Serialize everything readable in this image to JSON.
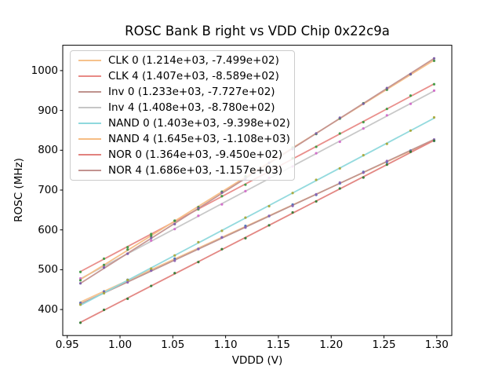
{
  "chart_data": {
    "type": "scatter",
    "title": "ROSC Bank B right vs VDD Chip 0x22c9a",
    "xlabel": "VDDD (V)",
    "ylabel": "ROSC (MHz)",
    "x_ticks": [
      0.95,
      1.0,
      1.05,
      1.1,
      1.15,
      1.2,
      1.25,
      1.3
    ],
    "x_tick_labels": [
      "0.95",
      "1.00",
      "1.05",
      "1.10",
      "1.15",
      "1.20",
      "1.25",
      "1.30"
    ],
    "y_ticks": [
      400,
      500,
      600,
      700,
      800,
      900,
      1000
    ],
    "y_tick_labels": [
      "400",
      "500",
      "600",
      "700",
      "800",
      "900",
      "1000"
    ],
    "xlim": [
      0.94575,
      1.31425
    ],
    "ylim": [
      334.7,
      1063.7
    ],
    "grid": false,
    "legend_position": "upper left",
    "x_points": [
      0.9625,
      0.9848,
      1.0072,
      1.0295,
      1.0518,
      1.0742,
      1.0965,
      1.1188,
      1.1412,
      1.1635,
      1.1858,
      1.2082,
      1.2305,
      1.2528,
      1.2752,
      1.2975
    ],
    "series": [
      {
        "name": "CLK 0",
        "label": "CLK 0 (1.214e+03, -7.499e+02)",
        "slope": 1214,
        "intercept": -749.9,
        "line_color": "#f6c28c",
        "marker_color": "#4a72b8"
      },
      {
        "name": "CLK 4",
        "label": "CLK 4 (1.407e+03, -8.589e+02)",
        "slope": 1407,
        "intercept": -858.9,
        "line_color": "#e88a86",
        "marker_color": "#3f9b42"
      },
      {
        "name": "Inv 0",
        "label": "Inv 0 (1.233e+03, -7.727e+02)",
        "slope": 1233,
        "intercept": -772.7,
        "line_color": "#bf938e",
        "marker_color": "#8a62b4"
      },
      {
        "name": "Inv 4",
        "label": "Inv 4 (1.408e+03, -8.780e+02)",
        "slope": 1408,
        "intercept": -878.0,
        "line_color": "#c6c6c6",
        "marker_color": "#d36bcb"
      },
      {
        "name": "NAND 0",
        "label": "NAND 0 (1.403e+03, -9.398e+02)",
        "slope": 1403,
        "intercept": -939.8,
        "line_color": "#8fd9dd",
        "marker_color": "#a9a93a"
      },
      {
        "name": "NAND 4",
        "label": "NAND 4 (1.645e+03, -1.108e+03)",
        "slope": 1645,
        "intercept": -1108.0,
        "line_color": "#f6bd84",
        "marker_color": "#3f8f46"
      },
      {
        "name": "NOR 0",
        "label": "NOR 0 (1.364e+03, -9.450e+02)",
        "slope": 1364,
        "intercept": -945.0,
        "line_color": "#e2827e",
        "marker_color": "#357a35"
      },
      {
        "name": "NOR 4",
        "label": "NOR 4 (1.686e+03, -1.157e+03)",
        "slope": 1686,
        "intercept": -1157.0,
        "line_color": "#c39390",
        "marker_color": "#7b5ea7"
      }
    ]
  }
}
